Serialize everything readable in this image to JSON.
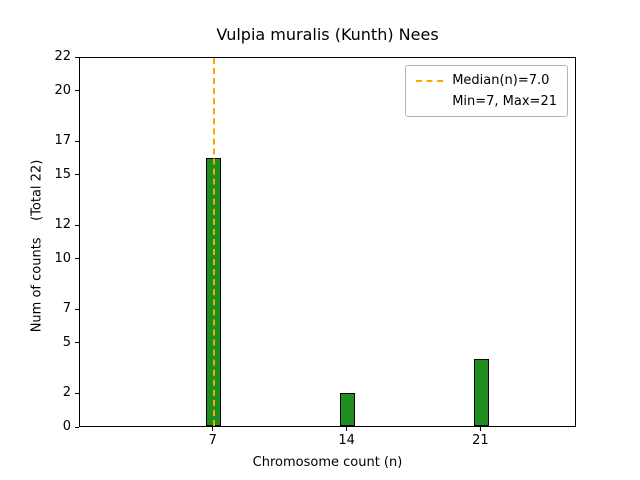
{
  "chart_data": {
    "type": "bar",
    "title": "Vulpia muralis (Kunth) Nees",
    "xlabel": "Chromosome count (n)",
    "ylabel": "Num of counts    (Total 22)",
    "x": [
      7,
      14,
      21
    ],
    "values": [
      16,
      2,
      4
    ],
    "total_counts": 22,
    "xticks": [
      7,
      14,
      21
    ],
    "yticks": [
      0,
      2,
      5,
      7,
      10,
      12,
      15,
      17,
      20,
      22
    ],
    "xlim": [
      0,
      26
    ],
    "ylim": [
      0,
      22
    ],
    "bar_width": 0.8,
    "bar_color": "#1e8e1e",
    "bar_edge_color": "#000000",
    "grid": false,
    "median_line": {
      "x": 7.0,
      "color": "#ffa500",
      "style": "dashed"
    },
    "legend": {
      "position": "upper right",
      "entries": [
        {
          "label": "Median(n)=7.0",
          "sample": "dashed-line",
          "color": "#ffa500"
        },
        {
          "label": "Min=7, Max=21",
          "sample": "none"
        }
      ]
    }
  }
}
